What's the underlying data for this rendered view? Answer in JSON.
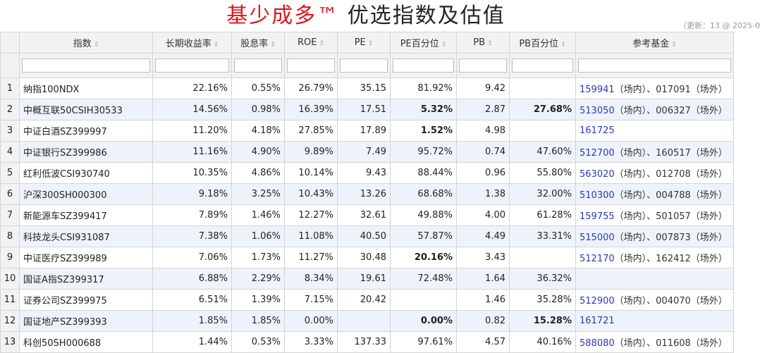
{
  "title": {
    "brand": "基少成多™",
    "rest": " 优选指数及估值"
  },
  "update_note": "（更新：13 @ 2025-0",
  "sort_icon": "sort-arrows-icon",
  "columns": [
    "指数",
    "长期收益率",
    "股息率",
    "ROE",
    "PE",
    "PE百分位",
    "PB",
    "PB百分位",
    "参考基金"
  ],
  "rows": [
    {
      "n": "1",
      "name": "纳指100NDX",
      "ret": "22.16%",
      "div": "0.55%",
      "roe": "26.79%",
      "pe": "35.15",
      "pep": "81.92%",
      "pb": "9.42",
      "pbp": "",
      "fund1": "159941",
      "tag1": "（场内）、",
      "fund2": "017091",
      "tag2": "（场外）"
    },
    {
      "n": "2",
      "name": "中概互联50CSIH30533",
      "ret": "14.56%",
      "div": "0.98%",
      "roe": "16.39%",
      "pe": "17.51",
      "pep": "5.32%",
      "pb": "2.87",
      "pbp": "27.68%",
      "fund1": "513050",
      "tag1": "（场内）、",
      "fund2": "006327",
      "tag2": "（场外）"
    },
    {
      "n": "3",
      "name": "中证白酒SZ399997",
      "ret": "11.20%",
      "div": "4.18%",
      "roe": "27.85%",
      "pe": "17.89",
      "pep": "1.52%",
      "pb": "4.98",
      "pbp": "",
      "fund1": "161725",
      "tag1": "",
      "fund2": "",
      "tag2": ""
    },
    {
      "n": "4",
      "name": "中证银行SZ399986",
      "ret": "11.16%",
      "div": "4.90%",
      "roe": "9.89%",
      "pe": "7.49",
      "pep": "95.72%",
      "pb": "0.74",
      "pbp": "47.60%",
      "fund1": "512700",
      "tag1": "（场内）、",
      "fund2": "160517",
      "tag2": "（场外）"
    },
    {
      "n": "5",
      "name": "红利低波CSI930740",
      "ret": "10.35%",
      "div": "4.86%",
      "roe": "10.14%",
      "pe": "9.43",
      "pep": "88.44%",
      "pb": "0.96",
      "pbp": "55.80%",
      "fund1": "563020",
      "tag1": "（场内）、",
      "fund2": "012708",
      "tag2": "（场外）"
    },
    {
      "n": "6",
      "name": "沪深300SH000300",
      "ret": "9.18%",
      "div": "3.25%",
      "roe": "10.43%",
      "pe": "13.26",
      "pep": "68.68%",
      "pb": "1.38",
      "pbp": "32.00%",
      "fund1": "510300",
      "tag1": "（场内）、",
      "fund2": "004788",
      "tag2": "（场外）"
    },
    {
      "n": "7",
      "name": "新能源车SZ399417",
      "ret": "7.89%",
      "div": "1.46%",
      "roe": "12.27%",
      "pe": "32.61",
      "pep": "49.88%",
      "pb": "4.00",
      "pbp": "61.28%",
      "fund1": "159755",
      "tag1": "（场内）、",
      "fund2": "501057",
      "tag2": "（场外）"
    },
    {
      "n": "8",
      "name": "科技龙头CSI931087",
      "ret": "7.38%",
      "div": "1.06%",
      "roe": "11.08%",
      "pe": "40.50",
      "pep": "57.87%",
      "pb": "4.49",
      "pbp": "33.31%",
      "fund1": "515000",
      "tag1": "（场内）、",
      "fund2": "007873",
      "tag2": "（场外）"
    },
    {
      "n": "9",
      "name": "中证医疗SZ399989",
      "ret": "7.06%",
      "div": "1.73%",
      "roe": "11.27%",
      "pe": "30.48",
      "pep": "20.16%",
      "pb": "3.43",
      "pbp": "",
      "fund1": "512170",
      "tag1": "（场内）、",
      "fund2": "162412",
      "tag2": "（场外）"
    },
    {
      "n": "10",
      "name": "国证A指SZ399317",
      "ret": "6.88%",
      "div": "2.29%",
      "roe": "8.34%",
      "pe": "19.61",
      "pep": "72.48%",
      "pb": "1.64",
      "pbp": "36.32%",
      "fund1": "",
      "tag1": "",
      "fund2": "",
      "tag2": ""
    },
    {
      "n": "11",
      "name": "证券公司SZ399975",
      "ret": "6.51%",
      "div": "1.39%",
      "roe": "7.15%",
      "pe": "20.42",
      "pep": "",
      "pb": "1.46",
      "pbp": "35.28%",
      "fund1": "512900",
      "tag1": "（场内）、",
      "fund2": "004070",
      "tag2": "（场外）"
    },
    {
      "n": "12",
      "name": "国证地产SZ399393",
      "ret": "1.85%",
      "div": "1.85%",
      "roe": "0.00%",
      "pe": "",
      "pep": "0.00%",
      "pb": "0.82",
      "pbp": "15.28%",
      "fund1": "161721",
      "tag1": "",
      "fund2": "",
      "tag2": ""
    },
    {
      "n": "13",
      "name": "科创50SH000688",
      "ret": "1.44%",
      "div": "0.53%",
      "roe": "3.33%",
      "pe": "137.33",
      "pep": "97.61%",
      "pb": "4.57",
      "pbp": "40.16%",
      "fund1": "588080",
      "tag1": "（场内）、",
      "fund2": "011608",
      "tag2": "（场外）"
    }
  ],
  "highlight": {
    "green_pe_pct": [
      "5.32%",
      "1.52%",
      "20.16%",
      "0.00%"
    ],
    "green_pb_pct": [
      "27.68%",
      "15.28%"
    ]
  },
  "colors": {
    "brand_red": "#e0161b",
    "link_blue": "#2a39b5",
    "low_green": "#5cb82e",
    "stripe": "#eef3fb",
    "header_bg": "#f2f2f2"
  }
}
